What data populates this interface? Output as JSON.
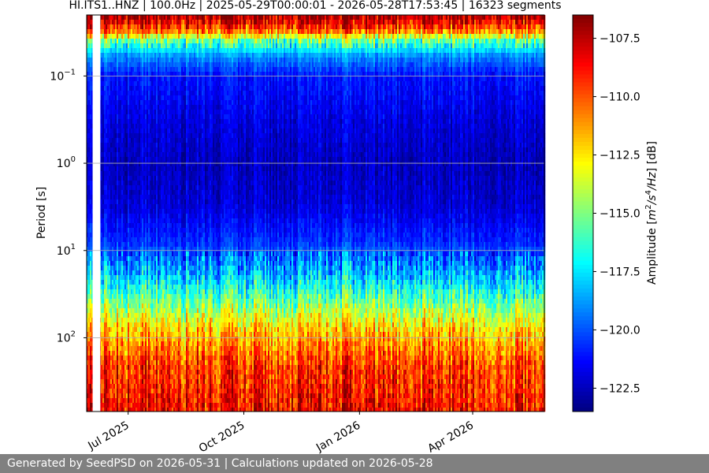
{
  "footer": {
    "text": "Generated by SeedPSD on 2026-05-31 | Calculations updated on 2026-05-28"
  },
  "chart_data": {
    "type": "heatmap",
    "title": "HI.ITS1..HNZ | 100.0Hz | 2025-05-29T00:00:01 - 2026-05-28T17:53:45 | 16323 segments",
    "xlabel": "",
    "ylabel": "Period [s]",
    "y_scale": "log",
    "ylim": [
      0.02,
      700
    ],
    "y_ticks": [
      {
        "value": 0.1,
        "base": "10",
        "exp": "−1"
      },
      {
        "value": 1,
        "base": "10",
        "exp": "0"
      },
      {
        "value": 10,
        "base": "10",
        "exp": "1"
      },
      {
        "value": 100,
        "base": "10",
        "exp": "2"
      }
    ],
    "x_range": [
      "2025-05-29",
      "2026-05-28"
    ],
    "x_ticks": [
      {
        "date": "2025-07-01",
        "label": "Jul 2025"
      },
      {
        "date": "2025-10-01",
        "label": "Oct 2025"
      },
      {
        "date": "2026-01-01",
        "label": "Jan 2026"
      },
      {
        "date": "2026-04-01",
        "label": "Apr 2026"
      }
    ],
    "grid": true,
    "colormap": "jet",
    "colorbar": {
      "label_parts": [
        "Amplitude [",
        "m",
        "2",
        "/s",
        "4",
        "/Hz",
        "] [dB]"
      ],
      "range": [
        -123.5,
        -106.5
      ],
      "ticks": [
        {
          "value": -107.5,
          "label": "−107.5"
        },
        {
          "value": -110.0,
          "label": "−110.0"
        },
        {
          "value": -112.5,
          "label": "−112.5"
        },
        {
          "value": -115.0,
          "label": "−115.0"
        },
        {
          "value": -117.5,
          "label": "−117.5"
        },
        {
          "value": -120.0,
          "label": "−120.0"
        },
        {
          "value": -122.5,
          "label": "−122.5"
        }
      ]
    },
    "amplitude_profile": [
      {
        "period": 0.02,
        "db": -106.8
      },
      {
        "period": 0.03,
        "db": -110.0
      },
      {
        "period": 0.04,
        "db": -115.5
      },
      {
        "period": 0.06,
        "db": -119.0
      },
      {
        "period": 0.1,
        "db": -121.0
      },
      {
        "period": 0.3,
        "db": -121.8
      },
      {
        "period": 1,
        "db": -122.4
      },
      {
        "period": 3,
        "db": -122.0
      },
      {
        "period": 8,
        "db": -120.6
      },
      {
        "period": 20,
        "db": -118.0
      },
      {
        "period": 40,
        "db": -115.0
      },
      {
        "period": 80,
        "db": -112.0
      },
      {
        "period": 200,
        "db": -109.5
      },
      {
        "period": 700,
        "db": -108.5
      }
    ],
    "data_gaps": [
      "2025-06-04",
      "2025-06-07"
    ]
  }
}
